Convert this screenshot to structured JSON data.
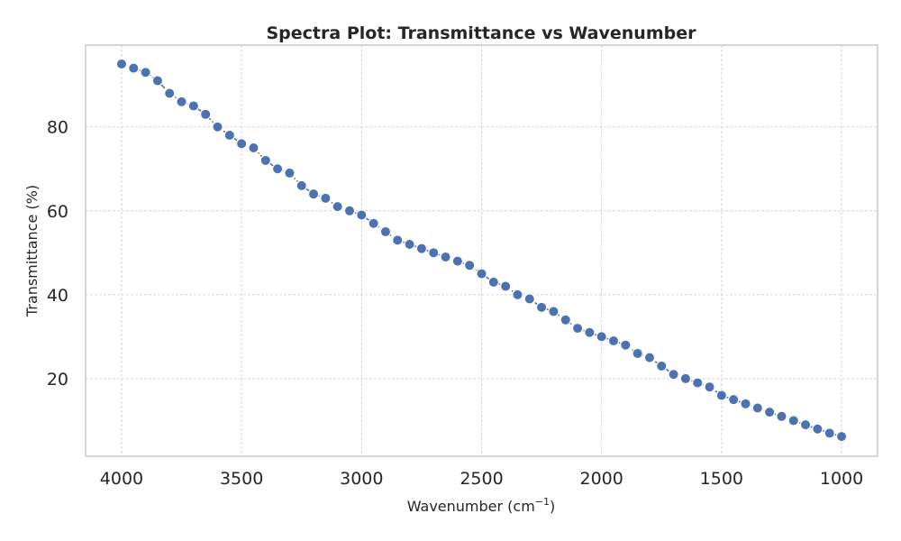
{
  "chart_data": {
    "type": "line",
    "title": "Spectra Plot: Transmittance vs Wavenumber",
    "xlabel": "Wavenumber (cm",
    "xlabel_superscript": "−1",
    "xlabel_suffix": ")",
    "ylabel": "Transmittance (%)",
    "xlim": [
      4150,
      850
    ],
    "ylim": [
      1.5,
      99.5
    ],
    "x_reversed": true,
    "grid": true,
    "legend": "none",
    "line_style": "dash-dot",
    "marker": "circle",
    "x_ticks": [
      4000,
      3500,
      3000,
      2500,
      2000,
      1500,
      1000
    ],
    "y_ticks": [
      20,
      40,
      60,
      80
    ],
    "series": [
      {
        "color": "#4c72b0",
        "x": [
          4000,
          3950,
          3900,
          3850,
          3800,
          3750,
          3700,
          3650,
          3600,
          3550,
          3500,
          3450,
          3400,
          3350,
          3300,
          3250,
          3200,
          3150,
          3100,
          3050,
          3000,
          2950,
          2900,
          2850,
          2800,
          2750,
          2700,
          2650,
          2600,
          2550,
          2500,
          2450,
          2400,
          2350,
          2300,
          2250,
          2200,
          2150,
          2100,
          2050,
          2000,
          1950,
          1900,
          1850,
          1800,
          1750,
          1700,
          1650,
          1600,
          1550,
          1500,
          1450,
          1400,
          1350,
          1300,
          1250,
          1200,
          1150,
          1100,
          1050,
          1000
        ],
        "y": [
          95.0,
          94.0,
          93.0,
          91.0,
          88.0,
          86.0,
          85.0,
          83.0,
          80.0,
          78.0,
          76.0,
          75.0,
          72.0,
          70.0,
          69.0,
          66.0,
          64.0,
          63.0,
          61.0,
          60.0,
          59.0,
          57.0,
          55.0,
          53.0,
          52.0,
          51.0,
          50.0,
          49.0,
          48.0,
          47.0,
          45.0,
          43.0,
          42.0,
          40.0,
          39.0,
          37.0,
          36.0,
          34.0,
          32.0,
          31.0,
          30.0,
          29.0,
          28.0,
          26.0,
          25.0,
          23.0,
          21.0,
          20.0,
          19.0,
          18.0,
          16.0,
          15.0,
          14.0,
          13.0,
          12.0,
          11.0,
          10.0,
          9.0,
          8.0,
          7.0,
          6.2
        ]
      }
    ]
  }
}
